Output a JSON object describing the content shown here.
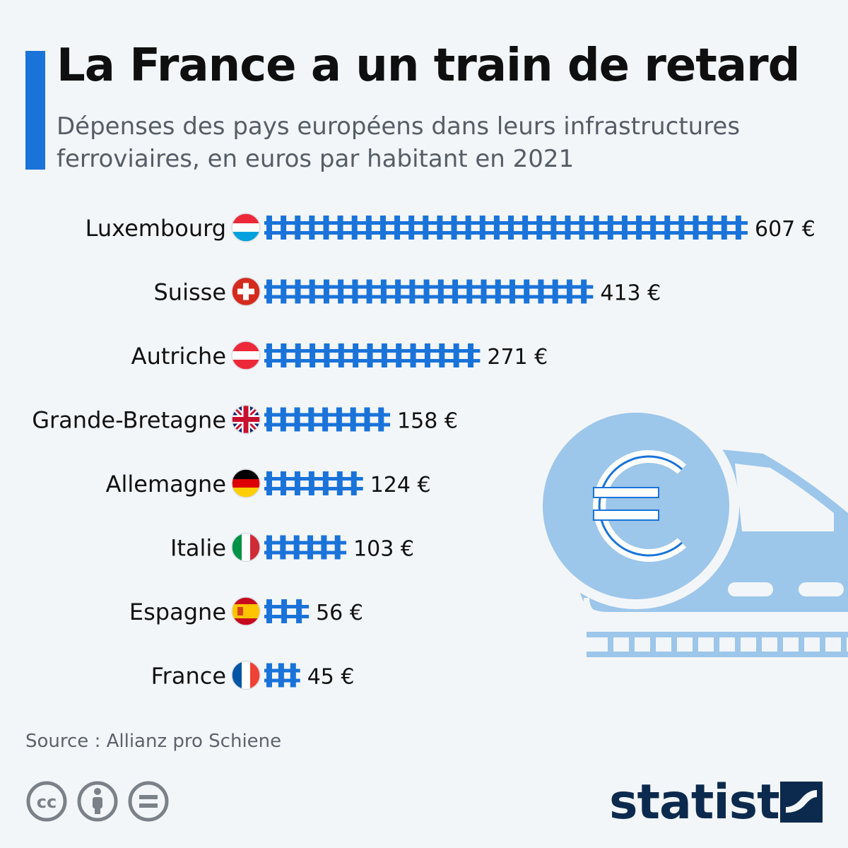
{
  "header": {
    "title": "La France a un train de retard",
    "subtitle": "Dépenses des pays européens dans leurs infrastructures ferroviaires, en euros par habitant en 2021"
  },
  "chart_data": {
    "type": "bar",
    "orientation": "horizontal",
    "title": "La France a un train de retard",
    "subtitle": "Dépenses des pays européens dans leurs infrastructures ferroviaires, en euros par habitant en 2021",
    "categories": [
      "Luxembourg",
      "Suisse",
      "Autriche",
      "Grande-Bretagne",
      "Allemagne",
      "Italie",
      "Espagne",
      "France"
    ],
    "values": [
      607,
      413,
      271,
      158,
      124,
      103,
      56,
      45
    ],
    "value_labels": [
      "607 €",
      "413 €",
      "271 €",
      "158 €",
      "124 €",
      "103 €",
      "56 €",
      "45 €"
    ],
    "unit": "€",
    "xlim": [
      0,
      607
    ],
    "grid": false,
    "legend": "none",
    "bar_color": "#1a73d9",
    "flag_icons": [
      "luxembourg-flag-icon",
      "switzerland-flag-icon",
      "austria-flag-icon",
      "uk-flag-icon",
      "germany-flag-icon",
      "italy-flag-icon",
      "spain-flag-icon",
      "france-flag-icon"
    ]
  },
  "footer": {
    "source": "Source : Allianz pro Schiene",
    "brand": "statista",
    "license_icons": [
      "cc-icon",
      "attribution-icon",
      "no-derivatives-icon"
    ]
  },
  "colors": {
    "accent": "#1a73d9",
    "background": "#f3f6f9",
    "illustration": "#9cc6ea",
    "brand": "#0c2a4d"
  }
}
